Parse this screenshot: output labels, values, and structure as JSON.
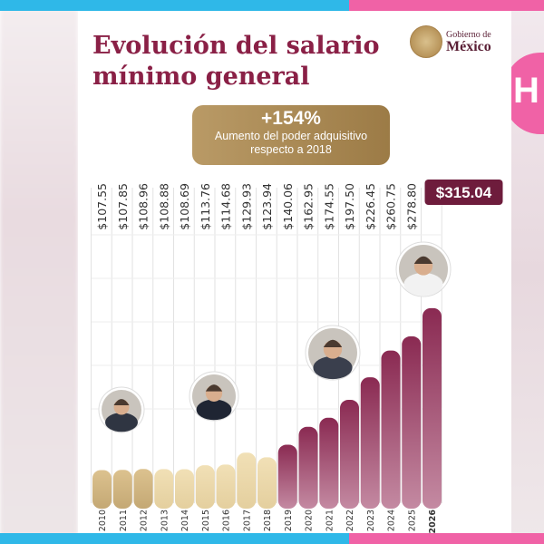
{
  "title_line1": "Evolución del salario",
  "title_line2": "mínimo general",
  "logo": {
    "line1": "Gobierno de",
    "line2": "México"
  },
  "highlight": {
    "value": "+154%",
    "line1": "Aumento del poder adquisitivo",
    "line2": "respecto a 2018"
  },
  "chart_data": {
    "type": "bar",
    "categories": [
      "2010",
      "2011",
      "2012",
      "2013",
      "2014",
      "2015",
      "2016",
      "2017",
      "2018",
      "2019",
      "2020",
      "2021",
      "2022",
      "2023",
      "2024",
      "2025",
      "2026"
    ],
    "value_labels": [
      "$107.55",
      "$107.85",
      "$108.96",
      "$108.88",
      "$108.69",
      "$113.76",
      "$114.68",
      "$129.93",
      "$123.94",
      "$140.06",
      "$162.95",
      "$174.55",
      "$197.50",
      "$226.45",
      "$260.75",
      "$278.80",
      "$315.04"
    ],
    "values": [
      107.55,
      107.85,
      108.96,
      108.88,
      108.69,
      113.76,
      114.68,
      129.93,
      123.94,
      140.06,
      162.95,
      174.55,
      197.5,
      226.45,
      260.75,
      278.8,
      315.04
    ],
    "ylim": [
      0,
      320
    ],
    "grid": true,
    "colors": {
      "gold_dark": "#c8ad7a",
      "gold_light": "#ead7a8",
      "maroon_light": "#b04f74",
      "maroon_dark": "#6e1c3c",
      "label_box": "#6e1c3c"
    }
  }
}
